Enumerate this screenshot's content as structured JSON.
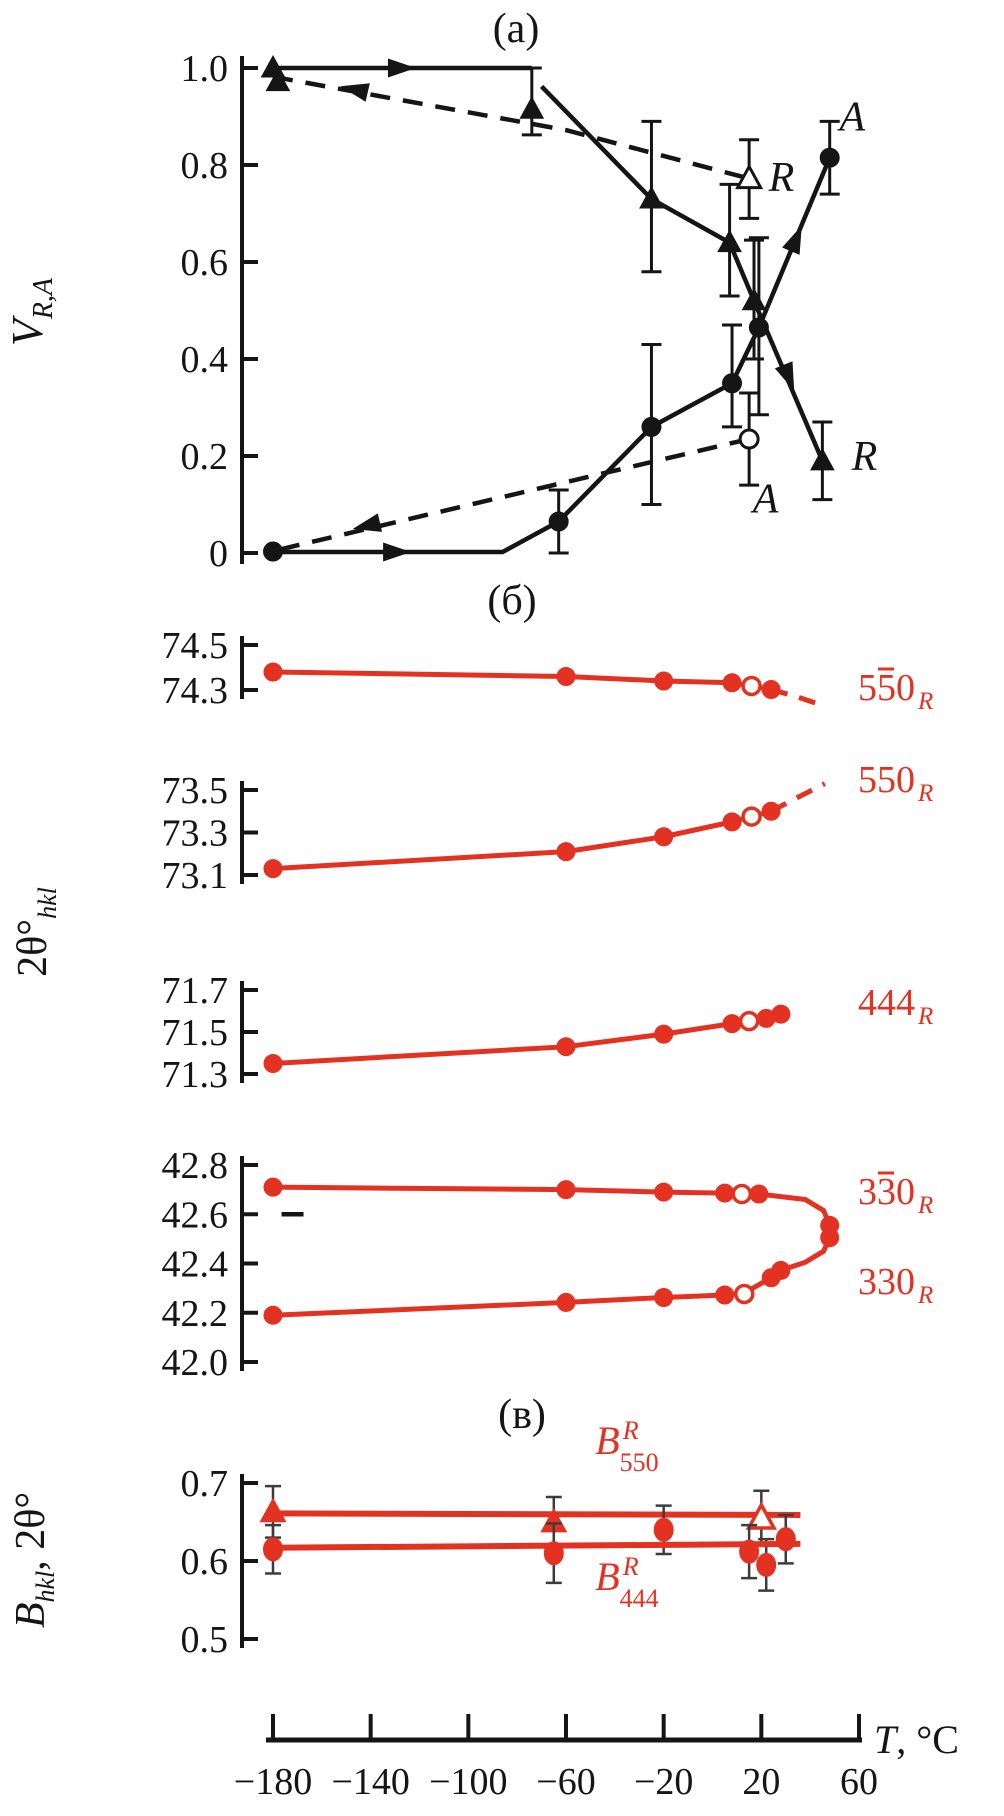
{
  "colors": {
    "red": "#e43222",
    "ink": "#151515",
    "error_bar": "#3c3c3c",
    "open_fill": "#ffffff"
  },
  "x_axis": {
    "title_var": "T",
    "title_unit": ", °C",
    "tick_labels": [
      "−180",
      "−140",
      "−100",
      "−60",
      "−20",
      "20",
      "60"
    ],
    "tick_values": [
      -180,
      -140,
      -100,
      -60,
      -20,
      20,
      60
    ]
  },
  "chart_data": [
    {
      "id": "panel-a",
      "type": "line",
      "title": "(a)",
      "ylabel": {
        "base": "V",
        "sub": "R,A"
      },
      "ytick_labels": [
        "1.0",
        "0.8",
        "0.6",
        "0.4",
        "0.2",
        "0"
      ],
      "ytick_values": [
        1.0,
        0.8,
        0.6,
        0.4,
        0.2,
        0
      ],
      "xlim": [
        -180,
        60
      ],
      "ylim": [
        0,
        1
      ],
      "series": [
        {
          "name": "V R heating",
          "phase": "R",
          "direction": "heating",
          "line": "solid",
          "marker": "triangle",
          "segments": [
            [
              [
                -180,
                1.0
              ],
              [
                -74,
                1.0
              ]
            ],
            [
              [
                -70,
                0.962
              ],
              [
                -25,
                0.73
              ],
              [
                7,
                0.64
              ],
              [
                17,
                0.52
              ],
              [
                45,
                0.19
              ]
            ]
          ],
          "markers": [
            {
              "t": -180,
              "v": 1.0
            },
            {
              "t": -74,
              "v": 0.915
            },
            {
              "t": -25,
              "v": 0.73
            },
            {
              "t": 7,
              "v": 0.64
            },
            {
              "t": 17,
              "v": 0.52
            },
            {
              "t": 45,
              "v": 0.19
            }
          ],
          "error_bars": [
            {
              "t": -74,
              "lo": 0.862,
              "hi": 1.0
            },
            {
              "t": -25,
              "lo": 0.58,
              "hi": 0.89
            },
            {
              "t": 7,
              "lo": 0.53,
              "hi": 0.76
            },
            {
              "t": 17,
              "lo": 0.4,
              "hi": 0.645
            },
            {
              "t": 45,
              "lo": 0.11,
              "hi": 0.27
            }
          ],
          "arrows": [
            {
              "t": -128,
              "v": 1.0,
              "angle": 0
            },
            {
              "t": 31,
              "v": 0.365,
              "angle": 68
            }
          ],
          "label": {
            "text": "R",
            "t": 57,
            "v": 0.2
          }
        },
        {
          "name": "V R cooling",
          "phase": "R",
          "direction": "cooling",
          "line": "dashed",
          "marker": "triangle",
          "segments": [
            [
              [
                -180,
                0.982
              ],
              [
                -60,
                0.872
              ],
              [
                15,
                0.772
              ]
            ]
          ],
          "markers": [
            {
              "t": -178,
              "v": 0.972
            }
          ],
          "open_markers": [
            {
              "t": 15,
              "v": 0.772
            }
          ],
          "error_bars": [
            {
              "t": 15,
              "lo": 0.69,
              "hi": 0.852
            }
          ],
          "arrows": [
            {
              "t": -146,
              "v": 0.955,
              "angle": -167
            }
          ],
          "label": {
            "text": "R",
            "t": 23,
            "v": 0.775
          }
        },
        {
          "name": "V A heating",
          "phase": "A",
          "direction": "heating",
          "line": "solid",
          "marker": "circle",
          "segments": [
            [
              [
                -180,
                0.002
              ],
              [
                -86,
                0.002
              ],
              [
                -63,
                0.065
              ],
              [
                -25,
                0.26
              ],
              [
                8,
                0.35
              ],
              [
                19,
                0.465
              ],
              [
                48,
                0.815
              ]
            ]
          ],
          "markers": [
            {
              "t": -180,
              "v": 0.003
            },
            {
              "t": -63,
              "v": 0.065
            },
            {
              "t": -25,
              "v": 0.26
            },
            {
              "t": 8,
              "v": 0.35
            },
            {
              "t": 19,
              "v": 0.465
            },
            {
              "t": 48,
              "v": 0.815
            }
          ],
          "error_bars": [
            {
              "t": -63,
              "lo": 0.0,
              "hi": 0.13
            },
            {
              "t": -25,
              "lo": 0.1,
              "hi": 0.43
            },
            {
              "t": 8,
              "lo": 0.26,
              "hi": 0.47
            },
            {
              "t": 19,
              "lo": 0.285,
              "hi": 0.65
            },
            {
              "t": 48,
              "lo": 0.74,
              "hi": 0.89
            }
          ],
          "arrows": [
            {
              "t": -130,
              "v": 0.002,
              "angle": 0
            },
            {
              "t": 34,
              "v": 0.645,
              "angle": -67
            }
          ],
          "label": {
            "text": "A",
            "t": 52,
            "v": 0.9
          }
        },
        {
          "name": "V A cooling",
          "phase": "A",
          "direction": "cooling",
          "line": "dashed",
          "marker": "circle",
          "segments": [
            [
              [
                15,
                0.235
              ],
              [
                -180,
                0.004
              ]
            ]
          ],
          "open_markers": [
            {
              "t": 15,
              "v": 0.235
            }
          ],
          "error_bars": [
            {
              "t": 15,
              "lo": 0.14,
              "hi": 0.33
            }
          ],
          "arrows": [
            {
              "t": -141,
              "v": 0.057,
              "angle": 167
            }
          ],
          "label": {
            "text": "A",
            "t": 16.5,
            "v": 0.112
          }
        }
      ]
    },
    {
      "id": "panel-b",
      "type": "line",
      "title": "(б)",
      "ylabel": {
        "base": "2θ°",
        "sub": "hkl"
      },
      "xlim": [
        -180,
        60
      ],
      "subplots": [
        {
          "reflection": {
            "text": "550",
            "overline_index": 1,
            "sub": "R"
          },
          "ytick_labels": [
            "74.5",
            "74.3"
          ],
          "ytick_values": [
            74.5,
            74.3
          ],
          "paths": [
            {
              "dashed": false,
              "points": [
                [
                  -180,
                  74.38
                ],
                [
                  -60,
                  74.36
                ],
                [
                  -20,
                  74.34
                ],
                [
                  8,
                  74.332
                ],
                [
                  24,
                  74.302
                ]
              ]
            },
            {
              "dashed": true,
              "points": [
                [
                  24,
                  74.302
                ],
                [
                  34,
                  74.272
                ],
                [
                  46,
                  74.228
                ]
              ]
            }
          ],
          "markers": [
            {
              "t": -180,
              "v": 74.38
            },
            {
              "t": -60,
              "v": 74.36
            },
            {
              "t": -20,
              "v": 74.34
            },
            {
              "t": 8,
              "v": 74.332
            },
            {
              "t": 24,
              "v": 74.302
            }
          ],
          "open_markers": [
            {
              "t": 16,
              "v": 74.318
            }
          ]
        },
        {
          "reflection": {
            "text": "550",
            "sub": "R"
          },
          "ytick_labels": [
            "73.5",
            "73.3",
            "73.1"
          ],
          "ytick_values": [
            73.5,
            73.3,
            73.1
          ],
          "paths": [
            {
              "dashed": false,
              "points": [
                [
                  -180,
                  73.13
                ],
                [
                  -60,
                  73.21
                ],
                [
                  -20,
                  73.28
                ],
                [
                  8,
                  73.35
                ],
                [
                  24,
                  73.4
                ]
              ]
            },
            {
              "dashed": true,
              "points": [
                [
                  24,
                  73.4
                ],
                [
                  34,
                  73.46
                ],
                [
                  46,
                  73.53
                ]
              ]
            }
          ],
          "markers": [
            {
              "t": -180,
              "v": 73.13
            },
            {
              "t": -60,
              "v": 73.21
            },
            {
              "t": -20,
              "v": 73.28
            },
            {
              "t": 8,
              "v": 73.35
            },
            {
              "t": 24,
              "v": 73.4
            }
          ],
          "open_markers": [
            {
              "t": 16,
              "v": 73.375
            }
          ]
        },
        {
          "reflection": {
            "text": "444",
            "sub": "R"
          },
          "ytick_labels": [
            "71.7",
            "71.5",
            "71.3"
          ],
          "ytick_values": [
            71.7,
            71.5,
            71.3
          ],
          "paths": [
            {
              "dashed": false,
              "points": [
                [
                  -180,
                  71.35
                ],
                [
                  -60,
                  71.43
                ],
                [
                  -20,
                  71.49
                ],
                [
                  8,
                  71.54
                ],
                [
                  22,
                  71.565
                ],
                [
                  28,
                  71.585
                ]
              ]
            }
          ],
          "markers": [
            {
              "t": -180,
              "v": 71.35
            },
            {
              "t": -60,
              "v": 71.43
            },
            {
              "t": -20,
              "v": 71.49
            },
            {
              "t": 8,
              "v": 71.54
            },
            {
              "t": 22,
              "v": 71.565
            },
            {
              "t": 28,
              "v": 71.585
            }
          ],
          "open_markers": [
            {
              "t": 15,
              "v": 71.552
            }
          ]
        },
        {
          "reflection": {
            "text": "330",
            "overline_index": 1,
            "sub": "R"
          },
          "reflection_lower": {
            "text": "330",
            "sub": "R"
          },
          "ytick_labels": [
            "42.8",
            "42.6",
            "42.4",
            "42.2",
            "42.0"
          ],
          "ytick_values": [
            42.8,
            42.6,
            42.4,
            42.2,
            42.0
          ],
          "paths": [
            {
              "dashed": false,
              "points": [
                [
                  -180,
                  42.71
                ],
                [
                  -60,
                  42.7
                ],
                [
                  -20,
                  42.69
                ],
                [
                  5,
                  42.686
                ],
                [
                  19,
                  42.682
                ],
                [
                  38,
                  42.66
                ],
                [
                  45.5,
                  42.615
                ],
                [
                  48,
                  42.555
                ],
                [
                  48,
                  42.505
                ],
                [
                  45.5,
                  42.45
                ],
                [
                  38,
                  42.405
                ],
                [
                  28,
                  42.372
                ],
                [
                  24,
                  42.342
                ],
                [
                  13,
                  42.28
                ],
                [
                  5,
                  42.272
                ],
                [
                  -20,
                  42.262
                ],
                [
                  -60,
                  42.242
                ],
                [
                  -180,
                  42.19
                ]
              ]
            }
          ],
          "markers": [
            {
              "t": -180,
              "v": 42.71
            },
            {
              "t": -60,
              "v": 42.7
            },
            {
              "t": -20,
              "v": 42.69
            },
            {
              "t": 5,
              "v": 42.686
            },
            {
              "t": 19,
              "v": 42.682
            },
            {
              "t": 48,
              "v": 42.555
            },
            {
              "t": 48,
              "v": 42.505
            },
            {
              "t": 28,
              "v": 42.372
            },
            {
              "t": 24,
              "v": 42.342
            },
            {
              "t": 5,
              "v": 42.272
            },
            {
              "t": -20,
              "v": 42.262
            },
            {
              "t": -60,
              "v": 42.242
            },
            {
              "t": -180,
              "v": 42.19
            }
          ],
          "open_markers": [
            {
              "t": 12,
              "v": 42.682
            },
            {
              "t": 13,
              "v": 42.276
            }
          ],
          "extra_dash_mark": {
            "t": -172,
            "v": 42.6
          }
        }
      ]
    },
    {
      "id": "panel-c",
      "type": "line",
      "title": "(в)",
      "ylabel": {
        "base": "B",
        "base_sub": "hkl",
        "rest": ", 2θ°"
      },
      "ytick_labels": [
        "0.7",
        "0.6",
        "0.5"
      ],
      "ytick_values": [
        0.7,
        0.6,
        0.5
      ],
      "series": [
        {
          "name": "B550",
          "marker": "triangle",
          "label": {
            "base": "B",
            "sup": "R",
            "sub": "550"
          },
          "label_pos": {
            "t": -48,
            "v": 0.737
          },
          "trend": [
            [
              -180,
              0.661
            ],
            [
              36,
              0.659
            ]
          ],
          "points": [
            {
              "t": -180,
              "v": 0.663,
              "err": 0.033
            },
            {
              "t": -65,
              "v": 0.65,
              "err": 0.032
            }
          ],
          "open_points": [
            {
              "t": 20,
              "v": 0.655,
              "err": 0.035
            }
          ]
        },
        {
          "name": "B444",
          "marker": "circle",
          "label": {
            "base": "B",
            "sup": "R",
            "sub": "444"
          },
          "label_pos": {
            "t": -48,
            "v": 0.563
          },
          "trend": [
            [
              -180,
              0.617
            ],
            [
              36,
              0.622
            ]
          ],
          "points": [
            {
              "t": -180,
              "v": 0.615,
              "err": 0.031
            },
            {
              "t": -65,
              "v": 0.61,
              "err": 0.038
            },
            {
              "t": -20,
              "v": 0.64,
              "err": 0.031
            },
            {
              "t": 15,
              "v": 0.612,
              "err": 0.034
            },
            {
              "t": 22,
              "v": 0.595,
              "err": 0.033
            },
            {
              "t": 30,
              "v": 0.628,
              "err": 0.031
            }
          ]
        }
      ]
    }
  ]
}
